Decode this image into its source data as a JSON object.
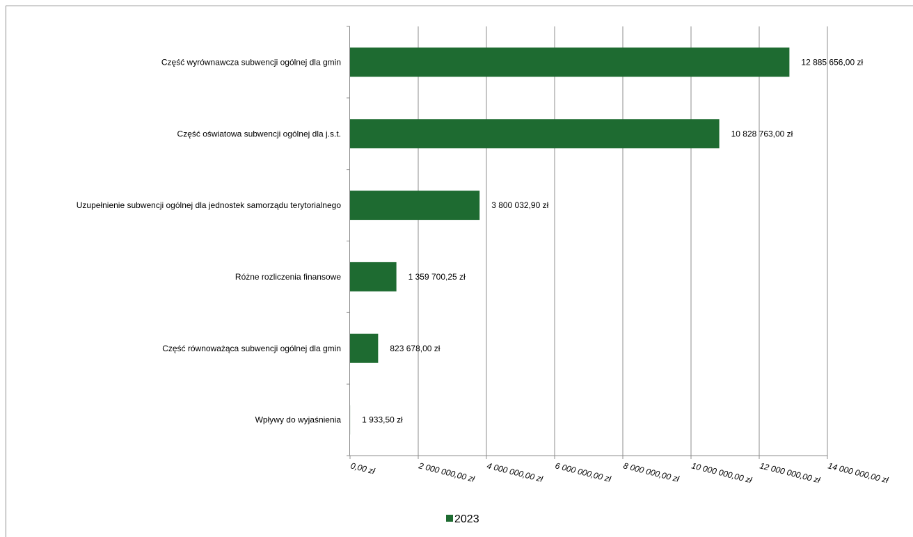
{
  "chart_data": {
    "type": "bar",
    "orientation": "horizontal",
    "categories": [
      "Część wyrównawcza subwencji ogólnej dla gmin",
      "Część oświatowa subwencji ogólnej dla j.s.t.",
      "Uzupełnienie subwencji ogólnej dla jednostek samorządu terytorialnego",
      "Różne rozliczenia finansowe",
      "Część równoważąca subwencji ogólnej dla gmin",
      "Wpływy do wyjaśnienia"
    ],
    "series": [
      {
        "name": "2023",
        "color": "#1e6b31",
        "values": [
          12885656.0,
          10828763.0,
          3800032.9,
          1359700.25,
          823678.0,
          1933.5
        ],
        "data_labels": [
          "12 885 656,00 zł",
          "10 828 763,00 zł",
          "3 800 032,90 zł",
          "1 359 700,25 zł",
          "823 678,00 zł",
          "1 933,50 zł"
        ]
      }
    ],
    "xlim": [
      0,
      14000000
    ],
    "x_ticks": [
      0,
      2000000,
      4000000,
      6000000,
      8000000,
      10000000,
      12000000,
      14000000
    ],
    "x_tick_labels": [
      "0,00 zł",
      "2 000 000,00 zł",
      "4 000 000,00 zł",
      "6 000 000,00 zł",
      "8 000 000,00 zł",
      "10 000 000,00 zł",
      "12 000 000,00 zł",
      "14 000 000,00 zł"
    ],
    "grid": "vertical",
    "legend_position": "bottom",
    "title": "",
    "xlabel": "",
    "ylabel": ""
  }
}
